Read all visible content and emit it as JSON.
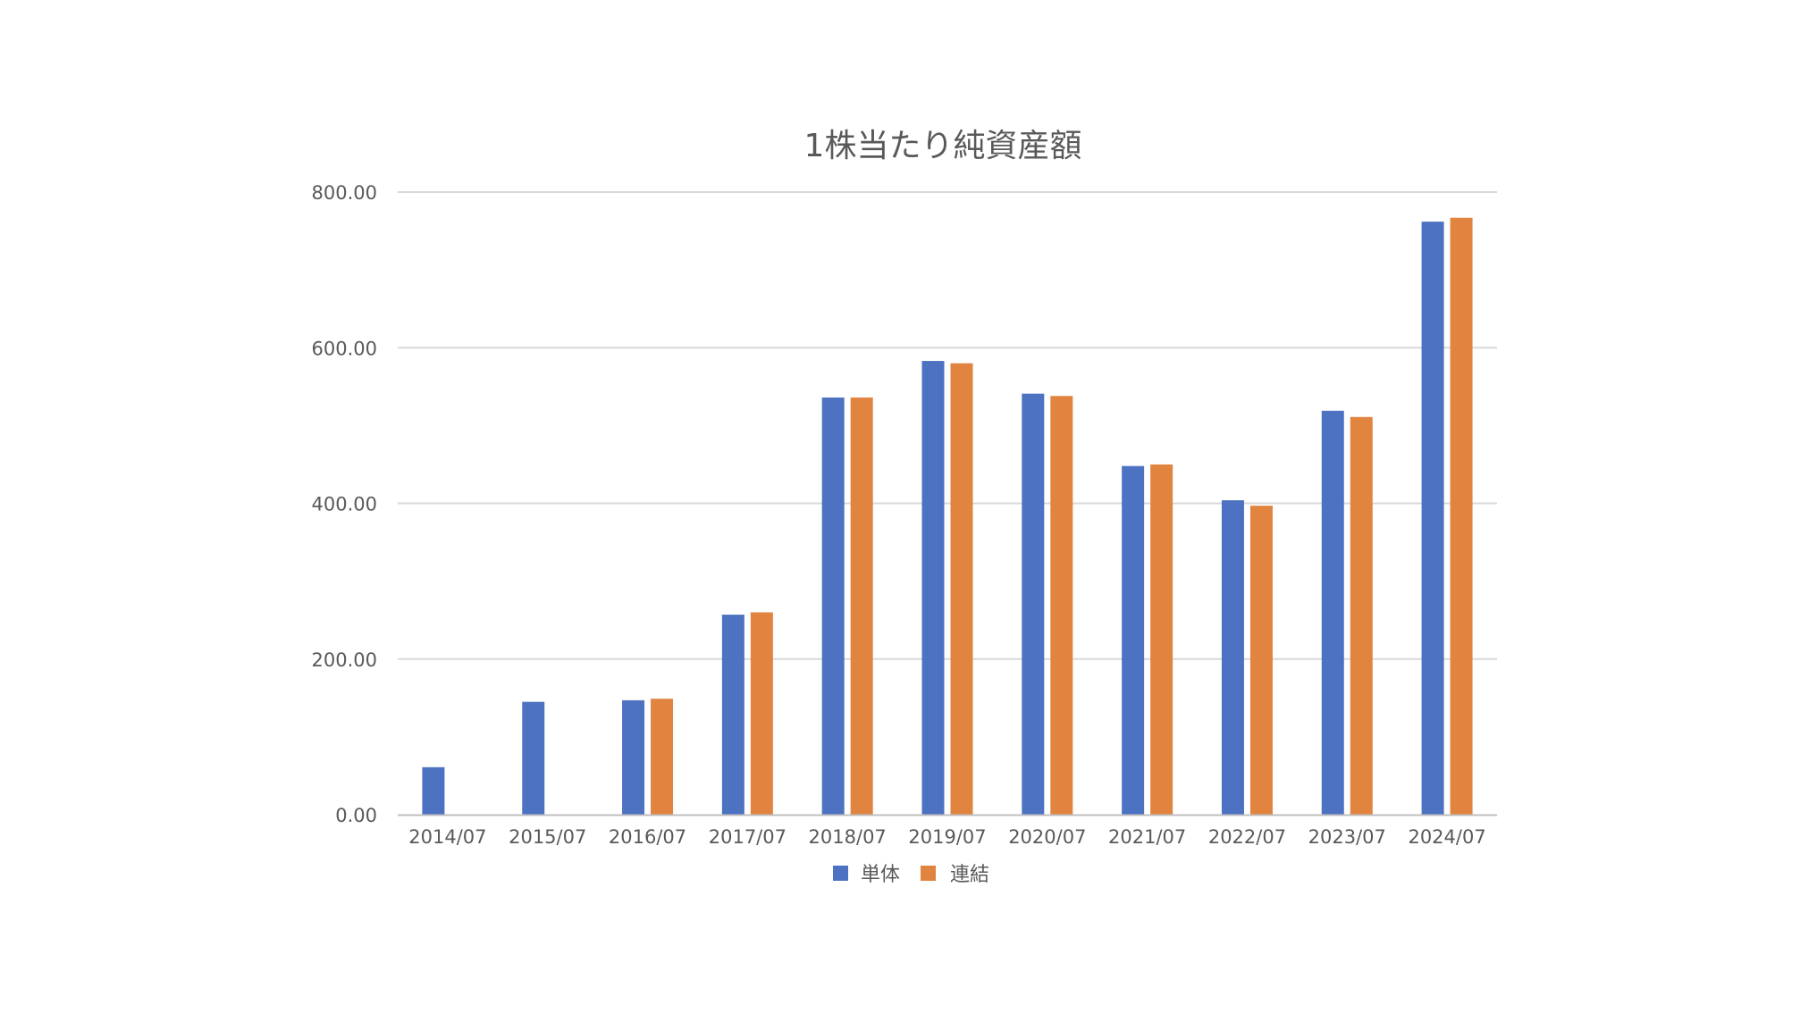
{
  "chart_data": {
    "type": "bar",
    "title": "1株当たり純資産額",
    "xlabel": "",
    "ylabel": "",
    "ylim": [
      0,
      800
    ],
    "yticks": [
      "0.00",
      "200.00",
      "400.00",
      "600.00",
      "800.00"
    ],
    "ytick_values": [
      0,
      200,
      400,
      600,
      800
    ],
    "grid": true,
    "legend_position": "bottom",
    "categories": [
      "2014/07",
      "2015/07",
      "2016/07",
      "2017/07",
      "2018/07",
      "2019/07",
      "2020/07",
      "2021/07",
      "2022/07",
      "2023/07",
      "2024/07"
    ],
    "series": [
      {
        "name": "単体",
        "color": "#4e72c2",
        "values": [
          61,
          145,
          147,
          257,
          536,
          583,
          541,
          448,
          404,
          519,
          762
        ]
      },
      {
        "name": "連結",
        "color": "#e0843f",
        "values": [
          null,
          null,
          149,
          260,
          536,
          580,
          538,
          450,
          397,
          511,
          767
        ]
      }
    ]
  },
  "colors": {
    "grid": "#d9d9d9",
    "axis": "#bfbfbf",
    "text": "#595959"
  }
}
